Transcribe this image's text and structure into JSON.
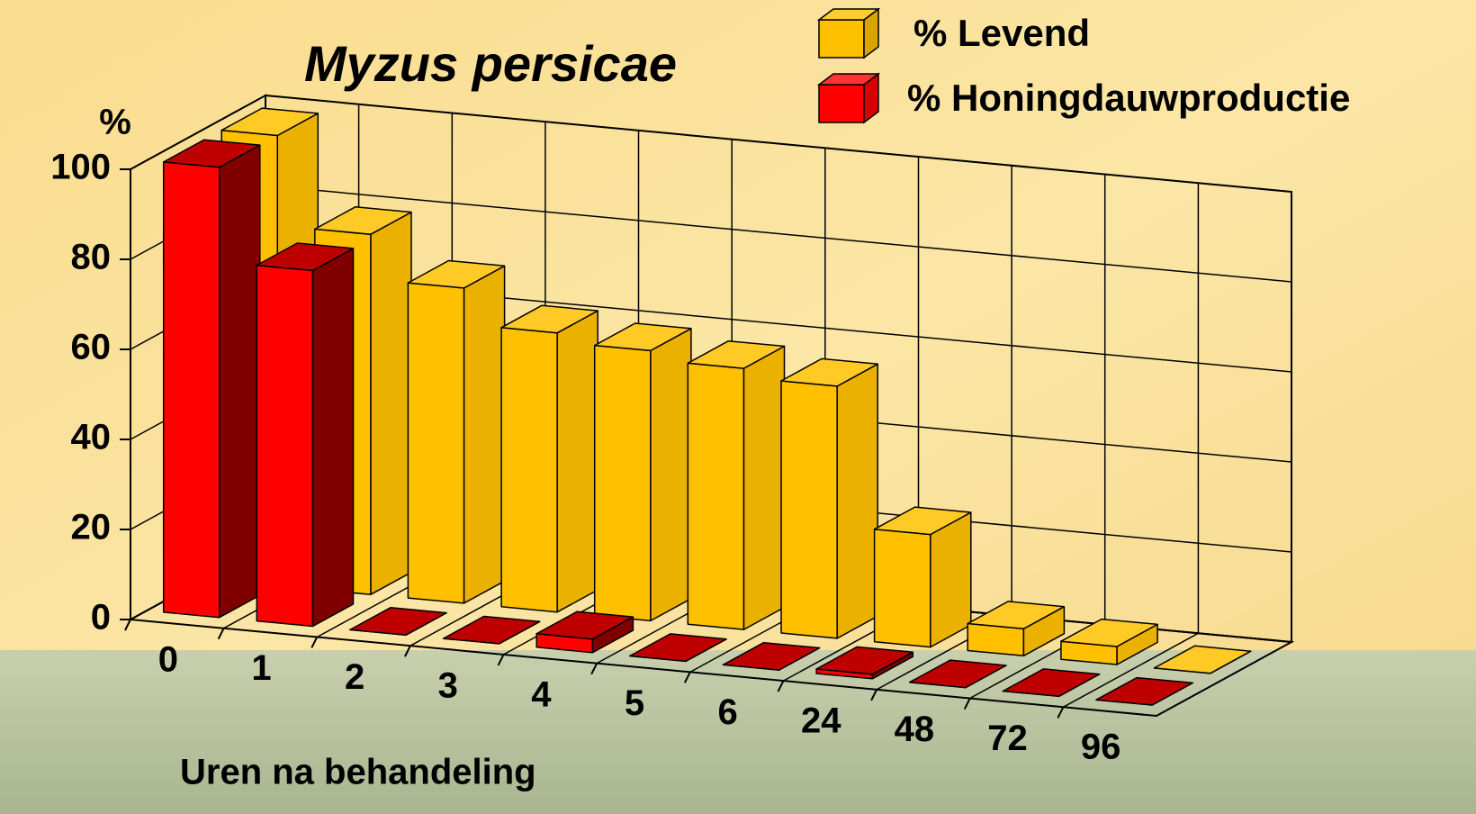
{
  "chart_data": {
    "type": "bar3d",
    "title": "Myzus persicae",
    "y_label": "%",
    "x_label": "Uren na behandeling",
    "categories": [
      "0",
      "1",
      "2",
      "3",
      "4",
      "5",
      "6",
      "24",
      "48",
      "72",
      "96"
    ],
    "series": [
      {
        "name": "% Levend",
        "color": "#ffc000",
        "values": [
          100,
          80,
          70,
          62,
          60,
          58,
          56,
          25,
          6,
          4,
          0
        ]
      },
      {
        "name": "% Honingdauwproductie",
        "color": "#ff0000",
        "values": [
          100,
          79,
          0,
          0,
          3,
          0,
          0,
          1,
          0,
          0,
          0
        ]
      }
    ],
    "ylim": [
      0,
      100
    ],
    "yticks": [
      0,
      20,
      40,
      60,
      80,
      100
    ],
    "grid": true
  }
}
